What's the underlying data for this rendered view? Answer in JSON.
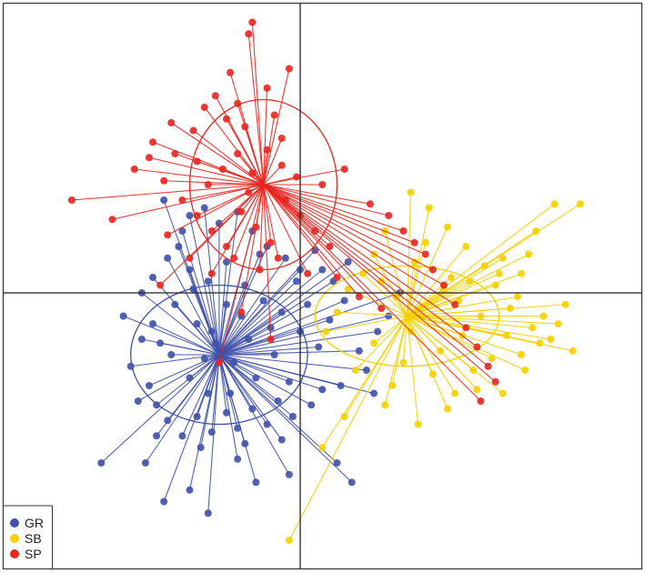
{
  "chart_data": {
    "type": "scatter",
    "title": "",
    "xlabel": "",
    "ylabel": "",
    "grid": false,
    "legend_position": "bottom-left",
    "xlim": [
      -7.5,
      8.5
    ],
    "ylim": [
      -7,
      7
    ],
    "axes_cross_at": [
      0,
      0
    ],
    "series": [
      {
        "name": "GR",
        "color": "#3f51a8",
        "centroid": [
          -2.2,
          -1.6
        ],
        "ellipse": {
          "rx": 2.4,
          "ry": 1.8
        },
        "points": [
          [
            -5.4,
            -4.4
          ],
          [
            -4.2,
            -4.4
          ],
          [
            -2.5,
            -5.7
          ],
          [
            -3.0,
            -5.1
          ],
          [
            -3.7,
            -5.4
          ],
          [
            -1.7,
            -4.3
          ],
          [
            -1.2,
            -4.9
          ],
          [
            -0.3,
            -4.7
          ],
          [
            1.4,
            -4.9
          ],
          [
            1.0,
            -4.4
          ],
          [
            -4.3,
            0.0
          ],
          [
            -4.8,
            -0.6
          ],
          [
            -4.3,
            -1.2
          ],
          [
            -4.6,
            -1.9
          ],
          [
            -4.1,
            -2.4
          ],
          [
            -3.9,
            -2.9
          ],
          [
            -3.6,
            -3.3
          ],
          [
            -3.2,
            -3.7
          ],
          [
            -2.8,
            -3.2
          ],
          [
            -2.4,
            -3.6
          ],
          [
            -2.0,
            -3.1
          ],
          [
            -1.7,
            -3.5
          ],
          [
            -1.3,
            -3.0
          ],
          [
            -0.9,
            -3.4
          ],
          [
            -0.6,
            -2.8
          ],
          [
            -0.2,
            -3.2
          ],
          [
            0.3,
            -2.9
          ],
          [
            0.6,
            -2.5
          ],
          [
            1.1,
            -2.4
          ],
          [
            1.6,
            -1.5
          ],
          [
            2.1,
            -1.0
          ],
          [
            2.4,
            -0.6
          ],
          [
            2.7,
            0.0
          ],
          [
            -3.2,
            1.6
          ],
          [
            -3.0,
            2.0
          ],
          [
            -2.6,
            2.2
          ],
          [
            -2.2,
            1.8
          ],
          [
            -1.7,
            2.1
          ],
          [
            -1.3,
            1.6
          ],
          [
            -0.9,
            1.2
          ],
          [
            -0.4,
            0.9
          ],
          [
            0.0,
            0.6
          ],
          [
            0.4,
            1.1
          ],
          [
            0.9,
            0.3
          ],
          [
            1.3,
            0.8
          ],
          [
            -3.6,
            0.9
          ],
          [
            -3.0,
            0.6
          ],
          [
            -2.5,
            0.3
          ],
          [
            -2.0,
            0.8
          ],
          [
            -1.5,
            0.2
          ],
          [
            -1.0,
            -0.2
          ],
          [
            -0.5,
            -0.5
          ],
          [
            0.0,
            -1.0
          ],
          [
            0.5,
            -1.4
          ],
          [
            -3.4,
            -0.3
          ],
          [
            -2.8,
            -0.8
          ],
          [
            -2.3,
            -1.3
          ],
          [
            -1.8,
            -1.8
          ],
          [
            -1.2,
            -2.2
          ],
          [
            -0.7,
            -1.6
          ],
          [
            -3.5,
            -1.6
          ],
          [
            -3.0,
            -2.2
          ],
          [
            -2.5,
            -2.6
          ],
          [
            -1.9,
            -2.6
          ],
          [
            -1.4,
            -1.2
          ],
          [
            -0.8,
            -0.9
          ],
          [
            -2.0,
            -0.3
          ],
          [
            -2.6,
            -1.7
          ],
          [
            -3.8,
            -1.3
          ],
          [
            -4.0,
            0.4
          ],
          [
            -3.3,
            1.2
          ],
          [
            -1.1,
            1.0
          ],
          [
            0.2,
            -0.3
          ],
          [
            0.8,
            -0.7
          ],
          [
            -0.3,
            -2.3
          ],
          [
            -4.4,
            -2.8
          ],
          [
            -3.9,
            -3.7
          ],
          [
            -2.7,
            -4.0
          ],
          [
            -1.5,
            -3.9
          ],
          [
            -0.5,
            -3.8
          ],
          [
            1.8,
            -2.0
          ],
          [
            2.0,
            -2.6
          ],
          [
            -2.4,
            -1.0
          ],
          [
            -1.6,
            -0.6
          ],
          [
            -2.9,
            0.1
          ],
          [
            -4.0,
            -0.8
          ],
          [
            -0.1,
            0.3
          ],
          [
            0.6,
            0.6
          ],
          [
            1.2,
            -0.2
          ],
          [
            -3.7,
            2.4
          ]
        ]
      },
      {
        "name": "SB",
        "color": "#f5d000",
        "centroid": [
          2.9,
          -0.6
        ],
        "ellipse": {
          "rx": 2.5,
          "ry": 1.3
        },
        "points": [
          [
            -0.3,
            -6.4
          ],
          [
            0.6,
            -4.0
          ],
          [
            1.2,
            -3.2
          ],
          [
            2.3,
            -2.9
          ],
          [
            3.2,
            -3.4
          ],
          [
            4.0,
            -3.0
          ],
          [
            4.8,
            -2.5
          ],
          [
            5.5,
            -2.6
          ],
          [
            6.0,
            -1.6
          ],
          [
            6.8,
            -1.2
          ],
          [
            6.3,
            -0.9
          ],
          [
            5.7,
            -0.4
          ],
          [
            5.3,
            0.2
          ],
          [
            5.0,
            0.7
          ],
          [
            4.5,
            1.2
          ],
          [
            4.0,
            1.7
          ],
          [
            3.5,
            2.2
          ],
          [
            3.0,
            2.6
          ],
          [
            7.4,
            -1.5
          ],
          [
            6.6,
            -0.6
          ],
          [
            7.0,
            -0.8
          ],
          [
            6.0,
            0.5
          ],
          [
            5.5,
            0.9
          ],
          [
            6.4,
            1.6
          ],
          [
            6.9,
            2.3
          ],
          [
            7.6,
            2.3
          ],
          [
            2.3,
            1.6
          ],
          [
            2.0,
            1.0
          ],
          [
            1.7,
            0.5
          ],
          [
            1.3,
            0.1
          ],
          [
            1.0,
            -0.5
          ],
          [
            0.7,
            -1.0
          ],
          [
            3.8,
            -1.5
          ],
          [
            4.4,
            -1.1
          ],
          [
            3.3,
            -0.6
          ],
          [
            2.6,
            -0.1
          ],
          [
            3.1,
            0.8
          ],
          [
            4.1,
            0.4
          ],
          [
            4.9,
            -0.6
          ],
          [
            5.6,
            -1.1
          ],
          [
            3.6,
            -2.1
          ],
          [
            2.8,
            -1.8
          ],
          [
            2.0,
            -1.3
          ],
          [
            1.5,
            -2.0
          ],
          [
            4.3,
            -0.2
          ],
          [
            5.2,
            -1.7
          ],
          [
            6.1,
            -2.0
          ],
          [
            2.5,
            -2.4
          ],
          [
            3.9,
            0.1
          ],
          [
            4.6,
            0.3
          ],
          [
            5.9,
            -0.1
          ],
          [
            6.5,
            -1.3
          ],
          [
            3.0,
            -1.0
          ],
          [
            4.7,
            -2.0
          ],
          [
            2.2,
            0.3
          ],
          [
            3.4,
            1.3
          ],
          [
            7.2,
            -0.3
          ],
          [
            5.4,
            0.5
          ],
          [
            6.2,
            1.0
          ],
          [
            4.2,
            -2.6
          ]
        ]
      },
      {
        "name": "SP",
        "color": "#e8251f",
        "centroid": [
          -1.0,
          2.8
        ],
        "ellipse": {
          "rx": 2.0,
          "ry": 2.2
        },
        "points": [
          [
            -1.3,
            7.0
          ],
          [
            -1.4,
            6.7
          ],
          [
            -0.3,
            5.8
          ],
          [
            -0.5,
            4.0
          ],
          [
            1.2,
            3.2
          ],
          [
            1.9,
            2.3
          ],
          [
            2.4,
            2.0
          ],
          [
            2.8,
            1.6
          ],
          [
            3.1,
            1.3
          ],
          [
            3.4,
            1.0
          ],
          [
            3.6,
            0.6
          ],
          [
            3.9,
            0.2
          ],
          [
            4.2,
            -0.3
          ],
          [
            4.5,
            -0.9
          ],
          [
            4.8,
            -1.4
          ],
          [
            5.1,
            -1.9
          ],
          [
            5.3,
            -2.3
          ],
          [
            4.9,
            -2.8
          ],
          [
            -6.2,
            2.4
          ],
          [
            -4.0,
            3.9
          ],
          [
            -5.1,
            1.9
          ],
          [
            -3.7,
            2.9
          ],
          [
            -3.4,
            3.6
          ],
          [
            -2.9,
            4.2
          ],
          [
            -2.6,
            4.8
          ],
          [
            -2.3,
            5.1
          ],
          [
            -2.0,
            4.5
          ],
          [
            -1.7,
            4.9
          ],
          [
            -1.5,
            4.3
          ],
          [
            -3.2,
            2.4
          ],
          [
            -2.8,
            2.0
          ],
          [
            -2.4,
            1.6
          ],
          [
            -2.0,
            1.2
          ],
          [
            -1.6,
            2.1
          ],
          [
            -1.2,
            1.7
          ],
          [
            -0.8,
            1.3
          ],
          [
            -0.4,
            2.4
          ],
          [
            0.0,
            2.0
          ],
          [
            0.4,
            1.6
          ],
          [
            0.8,
            1.2
          ],
          [
            -2.1,
            3.2
          ],
          [
            -1.7,
            3.6
          ],
          [
            -1.3,
            3.1
          ],
          [
            -0.9,
            3.7
          ],
          [
            -0.5,
            3.3
          ],
          [
            -2.5,
            2.8
          ],
          [
            -0.1,
            3.0
          ],
          [
            -3.6,
            1.5
          ],
          [
            -3.0,
            0.9
          ],
          [
            -2.4,
            0.5
          ],
          [
            -1.8,
            0.9
          ],
          [
            -1.1,
            0.6
          ],
          [
            -0.6,
            0.9
          ],
          [
            0.2,
            0.5
          ],
          [
            1.0,
            0.4
          ],
          [
            1.6,
            -0.1
          ],
          [
            2.2,
            -0.4
          ],
          [
            -4.5,
            3.2
          ],
          [
            -4.1,
            3.5
          ],
          [
            -3.5,
            4.4
          ],
          [
            -1.9,
            5.7
          ],
          [
            -0.9,
            5.3
          ],
          [
            -0.7,
            4.6
          ],
          [
            0.6,
            2.8
          ],
          [
            -2.8,
            3.4
          ],
          [
            -1.4,
            2.6
          ],
          [
            -2.2,
            -1.8
          ],
          [
            -0.8,
            -1.2
          ],
          [
            -3.8,
            0.2
          ],
          [
            -1.6,
            -0.5
          ]
        ]
      }
    ]
  },
  "legend": {
    "items": [
      {
        "label": "GR",
        "color": "#3f51a8"
      },
      {
        "label": "SB",
        "color": "#f5d000"
      },
      {
        "label": "SP",
        "color": "#e8251f"
      }
    ]
  }
}
